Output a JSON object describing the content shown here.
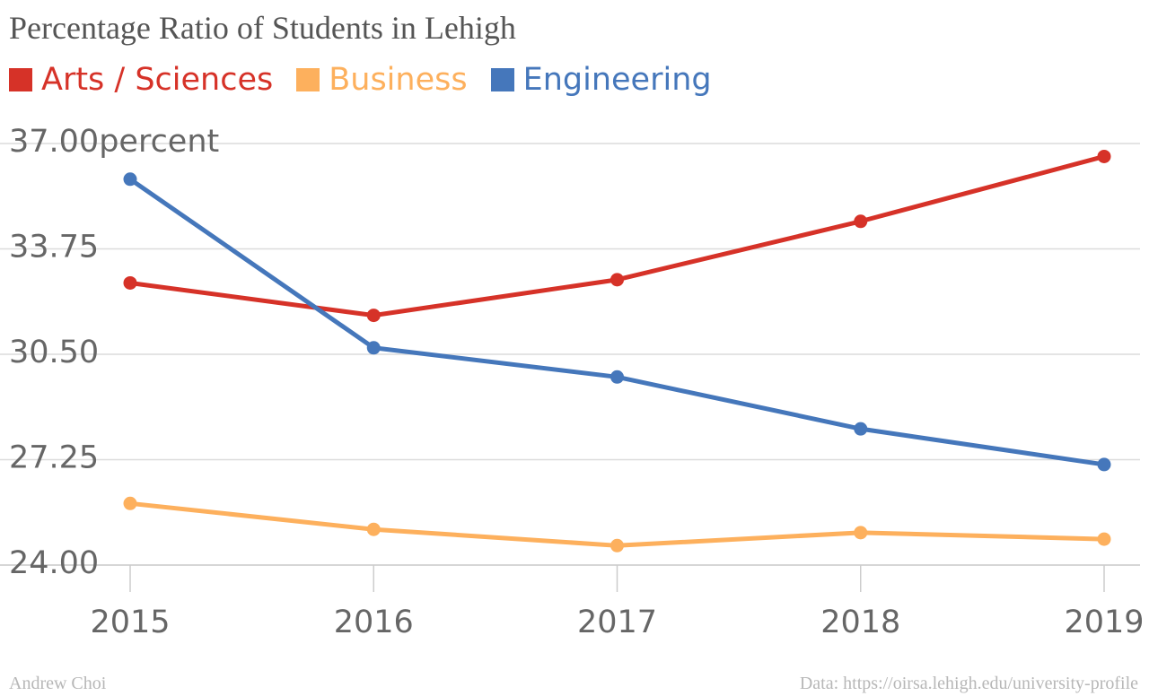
{
  "chart_data": {
    "type": "line",
    "title": "Percentage Ratio of Students in Lehigh",
    "xlabel": "",
    "ylabel": "",
    "categories": [
      "2015",
      "2016",
      "2017",
      "2018",
      "2019"
    ],
    "y_ticks": [
      "24.00",
      "27.25",
      "30.50",
      "33.75",
      "37.00percent"
    ],
    "ylim": [
      24,
      37
    ],
    "grid": true,
    "legend_position": "top-left",
    "series": [
      {
        "name": "Arts / Sciences",
        "color": "#d63228",
        "values": [
          32.7,
          31.7,
          32.8,
          34.6,
          36.6
        ]
      },
      {
        "name": "Business",
        "color": "#fdb05d",
        "values": [
          25.9,
          25.1,
          24.6,
          25.0,
          24.8
        ]
      },
      {
        "name": "Engineering",
        "color": "#4577bb",
        "values": [
          35.9,
          30.7,
          29.8,
          28.2,
          27.1
        ]
      }
    ]
  },
  "footer": {
    "author": "Andrew Choi",
    "source": "Data: https://oirsa.lehigh.edu/university-profile"
  }
}
